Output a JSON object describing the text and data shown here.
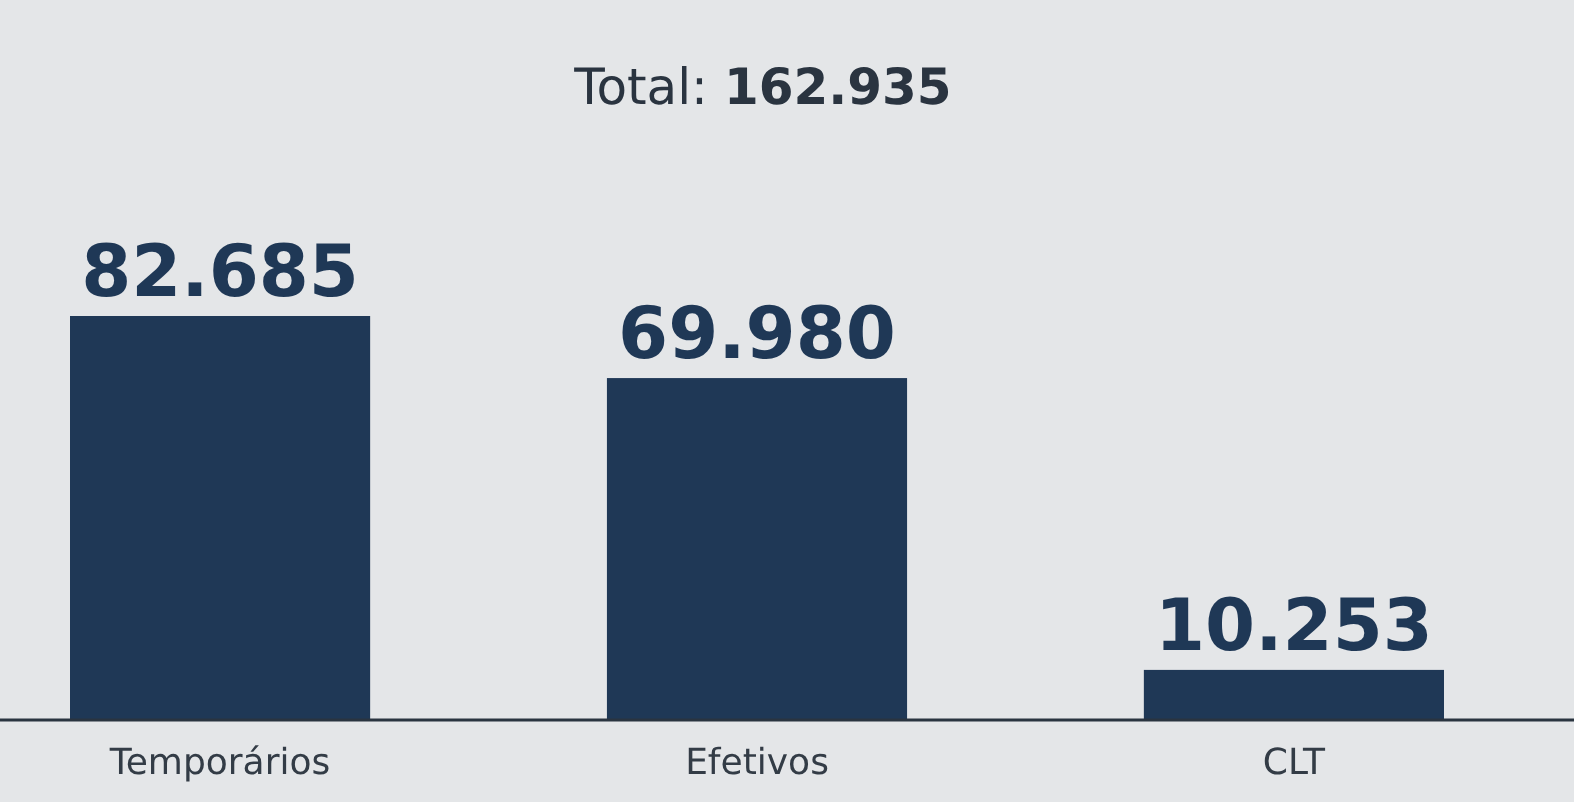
{
  "chart_data": {
    "type": "bar",
    "title": "Total: 162.935",
    "categories": [
      "Temporários",
      "Efetivos",
      "CLT"
    ],
    "values": [
      82685,
      69980,
      10253
    ],
    "value_labels": [
      "82.685",
      "69.980",
      "10.253"
    ],
    "color": "#1f3856",
    "tick_labels": "x"
  }
}
